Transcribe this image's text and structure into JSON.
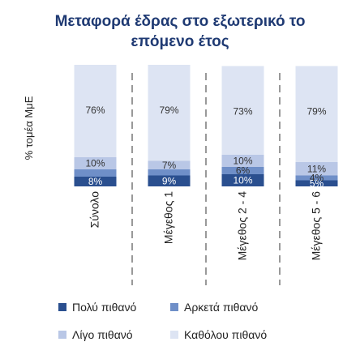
{
  "chart_data": {
    "type": "bar",
    "stacked": true,
    "title": [
      "Μεταφορά έδρας στο εξωτερικό το",
      "επόμενο έτος"
    ],
    "ylabel": "% τομέα ΜμΕ",
    "ylim": [
      0,
      100
    ],
    "categories": [
      "Σύνολο",
      "Μέγεθος 1",
      "Μέγεθος 2 - 4",
      "Μέγεθος 5 - 6"
    ],
    "series": [
      {
        "name": "Πολύ πιθανό",
        "color": "#2a4f8f",
        "values": [
          8,
          9,
          10,
          5
        ],
        "labels": [
          "8%",
          "9%",
          "10%",
          "5%"
        ]
      },
      {
        "name": "Αρκετά πιθανό",
        "color": "#6f8fc8",
        "values": [
          6,
          5,
          6,
          4
        ],
        "labels": [
          "",
          "",
          "6%",
          "4%"
        ]
      },
      {
        "name": "Λίγο πιθανό",
        "color": "#b9c7e6",
        "values": [
          10,
          7,
          10,
          11
        ],
        "labels": [
          "10%",
          "7%",
          "10%",
          "11%"
        ]
      },
      {
        "name": "Καθόλου πιθανό",
        "color": "#dde4f3",
        "values": [
          76,
          79,
          73,
          79
        ],
        "labels": [
          "76%",
          "79%",
          "73%",
          "79%"
        ]
      }
    ],
    "grid": false,
    "legend_position": "bottom"
  }
}
